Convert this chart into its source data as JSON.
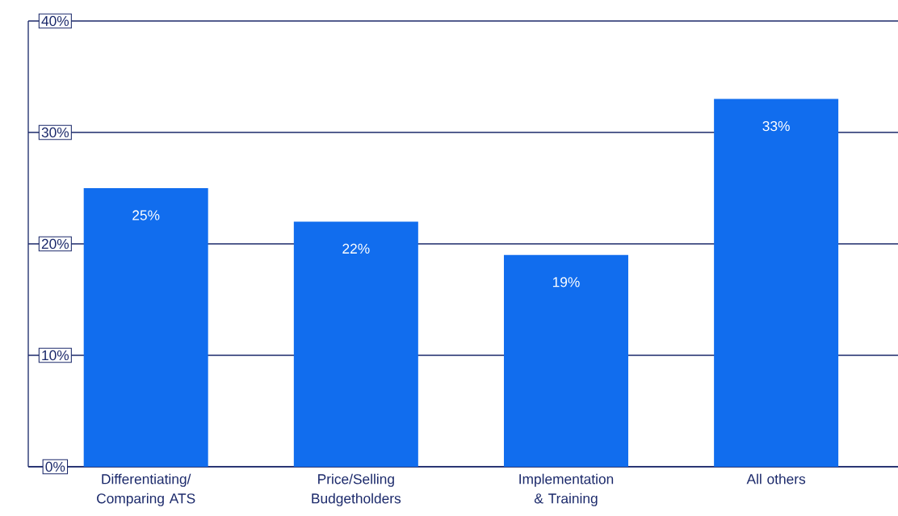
{
  "chart_data": {
    "type": "bar",
    "categories": [
      "Differentiating/ Comparing ATS",
      "Price/Selling Budgetholders",
      "Implementation & Training",
      "All others"
    ],
    "values": [
      25,
      22,
      19,
      33
    ],
    "value_labels": [
      "25%",
      "22%",
      "19%",
      "33%"
    ],
    "color": "#116dee",
    "ylim": [
      0,
      40
    ],
    "yticks": [
      {
        "value": 0,
        "label": "0%"
      },
      {
        "value": 10,
        "label": "10%"
      },
      {
        "value": 20,
        "label": "20%"
      },
      {
        "value": 30,
        "label": "30%"
      },
      {
        "value": 40,
        "label": "40%"
      }
    ],
    "grid": "y"
  }
}
